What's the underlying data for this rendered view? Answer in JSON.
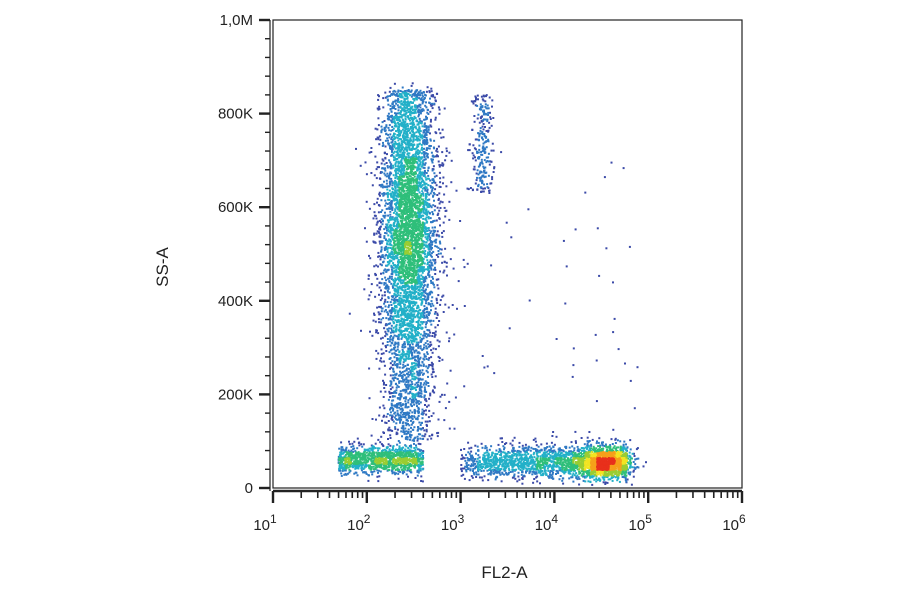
{
  "chart_data": {
    "type": "scatter",
    "style": "density-colored dot plot",
    "xlabel": "FL2-A",
    "ylabel": "SS-A",
    "xscale": "log",
    "xlim": [
      10,
      1000000
    ],
    "ylim": [
      0,
      1000000
    ],
    "x_ticks": [
      {
        "value": 10,
        "base": "10",
        "exp": "1"
      },
      {
        "value": 100,
        "base": "10",
        "exp": "2"
      },
      {
        "value": 1000,
        "base": "10",
        "exp": "3"
      },
      {
        "value": 10000,
        "base": "10",
        "exp": "4"
      },
      {
        "value": 100000,
        "base": "10",
        "exp": "5"
      },
      {
        "value": 1000000,
        "base": "10",
        "exp": "6"
      }
    ],
    "y_ticks": [
      {
        "value": 0,
        "label": "0"
      },
      {
        "value": 200000,
        "label": "200K"
      },
      {
        "value": 400000,
        "label": "400K"
      },
      {
        "value": 600000,
        "label": "600K"
      },
      {
        "value": 800000,
        "label": "800K"
      },
      {
        "value": 1000000,
        "label": "1,0M"
      }
    ],
    "populations": [
      {
        "description": "tall vertical population",
        "x_center": 280,
        "x_spread_decades": 0.12,
        "y_range": [
          100000,
          850000
        ],
        "y_peak": 550000,
        "points": 5200
      },
      {
        "description": "low horizontal population",
        "x_range": [
          1000,
          60000
        ],
        "y_center": 55000,
        "y_spread": 18000,
        "peak_x": 35000,
        "points": 2600
      },
      {
        "description": "base cluster",
        "x_range": [
          50,
          400
        ],
        "y_center": 60000,
        "y_spread": 15000,
        "points": 1100
      },
      {
        "description": "small upper group",
        "x_center": 1700,
        "x_spread_decades": 0.06,
        "y_range": [
          630000,
          840000
        ],
        "points": 240
      },
      {
        "description": "sparse background events",
        "x_range": [
          100,
          80000
        ],
        "y_range": [
          100000,
          700000
        ],
        "points": 70
      }
    ],
    "colormap": [
      "#3b4aa8",
      "#2f79c4",
      "#22b0c8",
      "#2fbf7a",
      "#9acd32",
      "#f2e422",
      "#f6a01a",
      "#e8301c"
    ],
    "grid": false,
    "legend": "none"
  }
}
